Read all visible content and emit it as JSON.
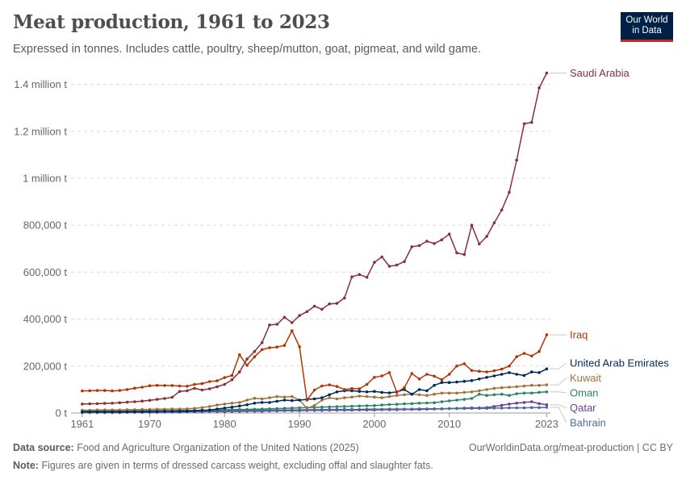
{
  "header": {
    "title": "Meat production, 1961 to 2023",
    "subtitle": "Expressed in tonnes. Includes cattle, poultry, sheep/mutton, goat, pigmeat, and wild game.",
    "logo_line1": "Our World",
    "logo_line2": "in Data"
  },
  "footer": {
    "source_label": "Data source:",
    "source_text": "Food and Agriculture Organization of the United Nations (2025)",
    "url_text": "OurWorldinData.org/meat-production | CC BY",
    "note_label": "Note:",
    "note_text": "Figures are given in terms of dressed carcass weight, excluding offal and slaughter fats."
  },
  "chart_data": {
    "type": "line",
    "title": "Meat production, 1961 to 2023",
    "x": [
      1961,
      1962,
      1963,
      1964,
      1965,
      1966,
      1967,
      1968,
      1969,
      1970,
      1971,
      1972,
      1973,
      1974,
      1975,
      1976,
      1977,
      1978,
      1979,
      1980,
      1981,
      1982,
      1983,
      1984,
      1985,
      1986,
      1987,
      1988,
      1989,
      1990,
      1991,
      1992,
      1993,
      1994,
      1995,
      1996,
      1997,
      1998,
      1999,
      2000,
      2001,
      2002,
      2003,
      2004,
      2005,
      2006,
      2007,
      2008,
      2009,
      2010,
      2011,
      2012,
      2013,
      2014,
      2015,
      2016,
      2017,
      2018,
      2019,
      2020,
      2021,
      2022,
      2023
    ],
    "xticks": [
      1961,
      1970,
      1980,
      1990,
      2000,
      2010,
      2023
    ],
    "xtick_labels": [
      "1961",
      "1970",
      "1980",
      "1990",
      "2000",
      "2010",
      "2023"
    ],
    "ylim": [
      0,
      1450000
    ],
    "yticks": [
      0,
      200000,
      400000,
      600000,
      800000,
      1000000,
      1200000,
      1400000
    ],
    "ytick_labels": [
      "0 t",
      "200,000 t",
      "400,000 t",
      "600,000 t",
      "800,000 t",
      "1 million t",
      "1.2 million t",
      "1.4 million t"
    ],
    "grid": true,
    "legend": "labels at line ends (right)",
    "series": [
      {
        "name": "Saudi Arabia",
        "color": "#883039",
        "values": [
          38000,
          39000,
          40000,
          41000,
          42000,
          44000,
          46000,
          48000,
          51000,
          54000,
          58000,
          62000,
          67000,
          92000,
          95000,
          105000,
          98000,
          103000,
          112000,
          122000,
          142000,
          175000,
          230000,
          262000,
          300000,
          375000,
          378000,
          408000,
          385000,
          415000,
          432000,
          455000,
          442000,
          465000,
          467000,
          490000,
          580000,
          590000,
          578000,
          642000,
          665000,
          625000,
          630000,
          645000,
          708000,
          713000,
          732000,
          722000,
          738000,
          762000,
          682000,
          675000,
          800000,
          720000,
          752000,
          810000,
          865000,
          940000,
          1077000,
          1232000,
          1238000,
          1385000,
          1448000
        ]
      },
      {
        "name": "Iraq",
        "color": "#b13507",
        "values": [
          94000,
          95000,
          96000,
          96000,
          94000,
          96000,
          100000,
          106000,
          110000,
          116000,
          118000,
          117000,
          117000,
          115000,
          114000,
          122000,
          125000,
          134000,
          137000,
          151000,
          160000,
          248000,
          203000,
          240000,
          270000,
          278000,
          281000,
          288000,
          350000,
          282000,
          55000,
          98000,
          115000,
          120000,
          113000,
          100000,
          104000,
          103000,
          122000,
          152000,
          158000,
          172000,
          88000,
          108000,
          168000,
          145000,
          165000,
          157000,
          142000,
          165000,
          200000,
          210000,
          181000,
          178000,
          175000,
          180000,
          187000,
          200000,
          240000,
          254000,
          243000,
          262000,
          333000
        ]
      },
      {
        "name": "United Arab Emirates",
        "color": "#00295b",
        "values": [
          5000,
          5000,
          5000,
          5000,
          5000,
          5000,
          5000,
          6000,
          6000,
          7000,
          7000,
          8000,
          8000,
          8000,
          8000,
          9000,
          11000,
          13000,
          17000,
          21000,
          25000,
          30000,
          35000,
          42000,
          45000,
          45000,
          50000,
          55000,
          53000,
          55000,
          58000,
          60000,
          65000,
          78000,
          90000,
          95000,
          95000,
          92000,
          90000,
          92000,
          88000,
          86000,
          90000,
          100000,
          80000,
          100000,
          95000,
          118000,
          130000,
          130000,
          132000,
          135000,
          138000,
          145000,
          152000,
          158000,
          165000,
          172000,
          165000,
          160000,
          175000,
          172000,
          188000
        ]
      },
      {
        "name": "Kuwait",
        "color": "#a2723d",
        "values": [
          12000,
          12000,
          13000,
          13000,
          13000,
          13000,
          14000,
          14000,
          15000,
          15000,
          16000,
          16000,
          17000,
          17000,
          18000,
          20000,
          23000,
          28000,
          34000,
          38000,
          42000,
          45000,
          55000,
          63000,
          60000,
          65000,
          70000,
          68000,
          70000,
          55000,
          20000,
          32000,
          55000,
          65000,
          60000,
          65000,
          68000,
          72000,
          70000,
          68000,
          65000,
          70000,
          75000,
          78000,
          80000,
          78000,
          75000,
          80000,
          85000,
          85000,
          85000,
          88000,
          90000,
          95000,
          100000,
          105000,
          108000,
          110000,
          112000,
          115000,
          118000,
          118000,
          120000
        ]
      },
      {
        "name": "Oman",
        "color": "#2c8465",
        "values": [
          8000,
          8000,
          8000,
          8000,
          8000,
          8000,
          9000,
          9000,
          9000,
          9000,
          10000,
          10000,
          10000,
          11000,
          11000,
          11000,
          12000,
          12000,
          13000,
          14000,
          14000,
          15000,
          15000,
          16000,
          17000,
          18000,
          19000,
          20000,
          21000,
          22000,
          23000,
          24000,
          25000,
          26000,
          27000,
          28000,
          29000,
          30000,
          31000,
          32000,
          34000,
          36000,
          37000,
          39000,
          40000,
          42000,
          43000,
          44000,
          48000,
          52000,
          55000,
          58000,
          62000,
          80000,
          75000,
          78000,
          80000,
          75000,
          82000,
          85000,
          85000,
          88000,
          90000
        ]
      },
      {
        "name": "Bahrain",
        "color": "#4c6a9c",
        "values": [
          4000,
          4000,
          4000,
          4000,
          4000,
          5000,
          5000,
          5000,
          5000,
          5000,
          6000,
          6000,
          6000,
          7000,
          7000,
          7000,
          8000,
          8000,
          9000,
          9000,
          10000,
          10000,
          11000,
          11000,
          12000,
          12000,
          12000,
          13000,
          13000,
          13000,
          14000,
          14000,
          14000,
          15000,
          15000,
          15000,
          15000,
          15000,
          16000,
          16000,
          16000,
          17000,
          17000,
          17000,
          17000,
          18000,
          18000,
          18000,
          18000,
          19000,
          19000,
          19000,
          20000,
          20000,
          20000,
          21000,
          21000,
          22000,
          22000,
          22000,
          23000,
          23000,
          24000
        ]
      },
      {
        "name": "Qatar",
        "color": "#6d3e91",
        "values": [
          2000,
          2000,
          2000,
          2000,
          2000,
          2000,
          3000,
          3000,
          3000,
          3000,
          3000,
          4000,
          4000,
          4000,
          5000,
          5000,
          5000,
          6000,
          6000,
          6000,
          7000,
          7000,
          8000,
          8000,
          8000,
          9000,
          9000,
          10000,
          10000,
          10000,
          11000,
          11000,
          11000,
          12000,
          12000,
          12000,
          12000,
          13000,
          13000,
          13000,
          14000,
          14000,
          14000,
          15000,
          15000,
          15000,
          16000,
          17000,
          18000,
          19000,
          20000,
          21000,
          22000,
          22000,
          23000,
          28000,
          33000,
          38000,
          42000,
          45000,
          48000,
          40000,
          35000
        ]
      }
    ]
  }
}
